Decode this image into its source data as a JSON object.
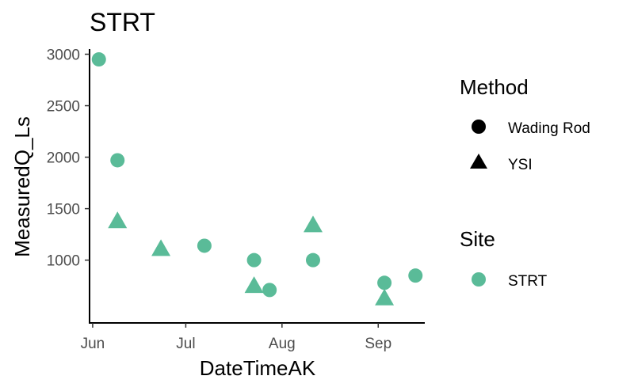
{
  "chart_data": {
    "type": "scatter",
    "title": "STRT",
    "xlabel": "DateTimeAK",
    "ylabel": "MeasuredQ_Ls",
    "x_ticks": [
      "Jun",
      "Jul",
      "Aug",
      "Sep"
    ],
    "x_tick_dates": [
      "2022-06-01",
      "2022-07-01",
      "2022-08-01",
      "2022-09-01"
    ],
    "xlim": [
      "2022-05-31",
      "2022-09-16"
    ],
    "y_ticks": [
      1000,
      1500,
      2000,
      2500,
      3000
    ],
    "ylim": [
      390,
      3050
    ],
    "grid": false,
    "legend_placement": "right",
    "point_color": "#5abb98",
    "points": [
      {
        "x": "2022-06-03",
        "y": 2950,
        "method": "Wading Rod"
      },
      {
        "x": "2022-06-09",
        "y": 1970,
        "method": "Wading Rod"
      },
      {
        "x": "2022-06-09",
        "y": 1380,
        "method": "YSI"
      },
      {
        "x": "2022-06-23",
        "y": 1110,
        "method": "YSI"
      },
      {
        "x": "2022-07-07",
        "y": 1140,
        "method": "Wading Rod"
      },
      {
        "x": "2022-07-23",
        "y": 1000,
        "method": "Wading Rod"
      },
      {
        "x": "2022-07-23",
        "y": 750,
        "method": "YSI"
      },
      {
        "x": "2022-07-28",
        "y": 710,
        "method": "Wading Rod"
      },
      {
        "x": "2022-08-11",
        "y": 1000,
        "method": "Wading Rod"
      },
      {
        "x": "2022-08-11",
        "y": 1340,
        "method": "YSI"
      },
      {
        "x": "2022-09-03",
        "y": 780,
        "method": "Wading Rod"
      },
      {
        "x": "2022-09-03",
        "y": 630,
        "method": "YSI"
      },
      {
        "x": "2022-09-13",
        "y": 850,
        "method": "Wading Rod"
      }
    ],
    "legend": {
      "method_title": "Method",
      "method_items": [
        {
          "label": "Wading Rod",
          "shape": "circle"
        },
        {
          "label": "YSI",
          "shape": "triangle"
        }
      ],
      "site_title": "Site",
      "site_items": [
        {
          "label": "STRT",
          "color": "#5abb98"
        }
      ]
    }
  }
}
